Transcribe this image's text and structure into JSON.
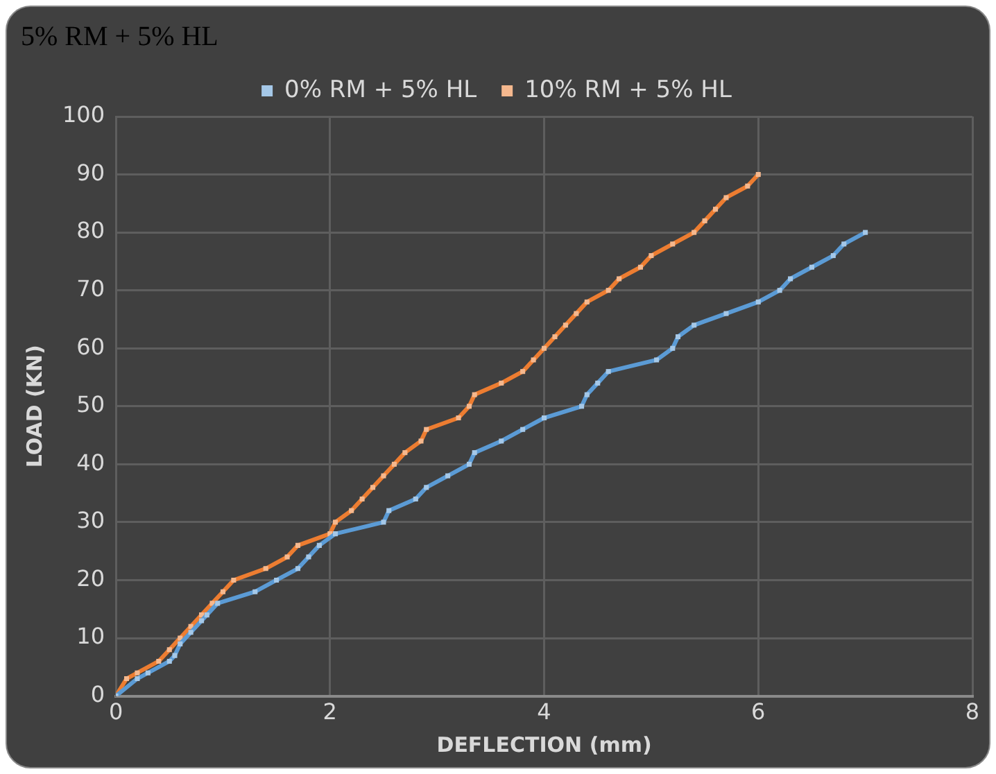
{
  "chart_data": {
    "type": "line",
    "title": "5% RM + 5% HL",
    "xlabel": "DEFLECTION (mm)",
    "ylabel": "LOAD (KN)",
    "xlim": [
      0,
      8
    ],
    "xticks": [
      0,
      2,
      4,
      6,
      8
    ],
    "ylim": [
      0,
      100
    ],
    "yticks": [
      0,
      10,
      20,
      30,
      40,
      50,
      60,
      70,
      80,
      90,
      100
    ],
    "grid": true,
    "legend": "top",
    "marker": "square",
    "line_style": "solid",
    "series": [
      {
        "name": "0% RM + 5% HL",
        "color": "#5b9bd5",
        "x": [
          0,
          0.2,
          0.3,
          0.5,
          0.55,
          0.6,
          0.7,
          0.8,
          0.85,
          0.95,
          1.3,
          1.5,
          1.7,
          1.8,
          1.9,
          2.05,
          2.5,
          2.55,
          2.8,
          2.9,
          3.1,
          3.3,
          3.35,
          3.6,
          3.8,
          4,
          4.35,
          4.4,
          4.5,
          4.6,
          5.05,
          5.2,
          5.25,
          5.4,
          5.7,
          6,
          6.2,
          6.3,
          6.5,
          6.7,
          6.8,
          7
        ],
        "values": [
          0,
          3,
          4,
          6,
          7,
          9,
          11,
          13,
          14,
          16,
          18,
          20,
          22,
          24,
          26,
          28,
          30,
          32,
          34,
          36,
          38,
          40,
          42,
          44,
          46,
          48,
          50,
          52,
          54,
          56,
          58,
          60,
          62,
          64,
          66,
          68,
          70,
          72,
          74,
          76,
          78,
          80
        ]
      },
      {
        "name": "10% RM + 5% HL",
        "color": "#ed7d31",
        "x": [
          0,
          0.1,
          0.2,
          0.4,
          0.5,
          0.6,
          0.7,
          0.8,
          0.9,
          1,
          1.1,
          1.4,
          1.6,
          1.7,
          2,
          2.05,
          2.2,
          2.3,
          2.4,
          2.5,
          2.6,
          2.7,
          2.85,
          2.9,
          3.2,
          3.3,
          3.35,
          3.6,
          3.8,
          3.9,
          4,
          4.1,
          4.2,
          4.3,
          4.4,
          4.6,
          4.7,
          4.9,
          5,
          5.2,
          5.4,
          5.5,
          5.6,
          5.7,
          5.9,
          6
        ],
        "values": [
          0,
          3,
          4,
          6,
          8,
          10,
          12,
          14,
          16,
          18,
          20,
          22,
          24,
          26,
          28,
          30,
          32,
          34,
          36,
          38,
          40,
          42,
          44,
          46,
          48,
          50,
          52,
          54,
          56,
          58,
          60,
          62,
          64,
          66,
          68,
          70,
          72,
          74,
          76,
          78,
          80,
          82,
          84,
          86,
          88,
          90
        ]
      }
    ]
  }
}
